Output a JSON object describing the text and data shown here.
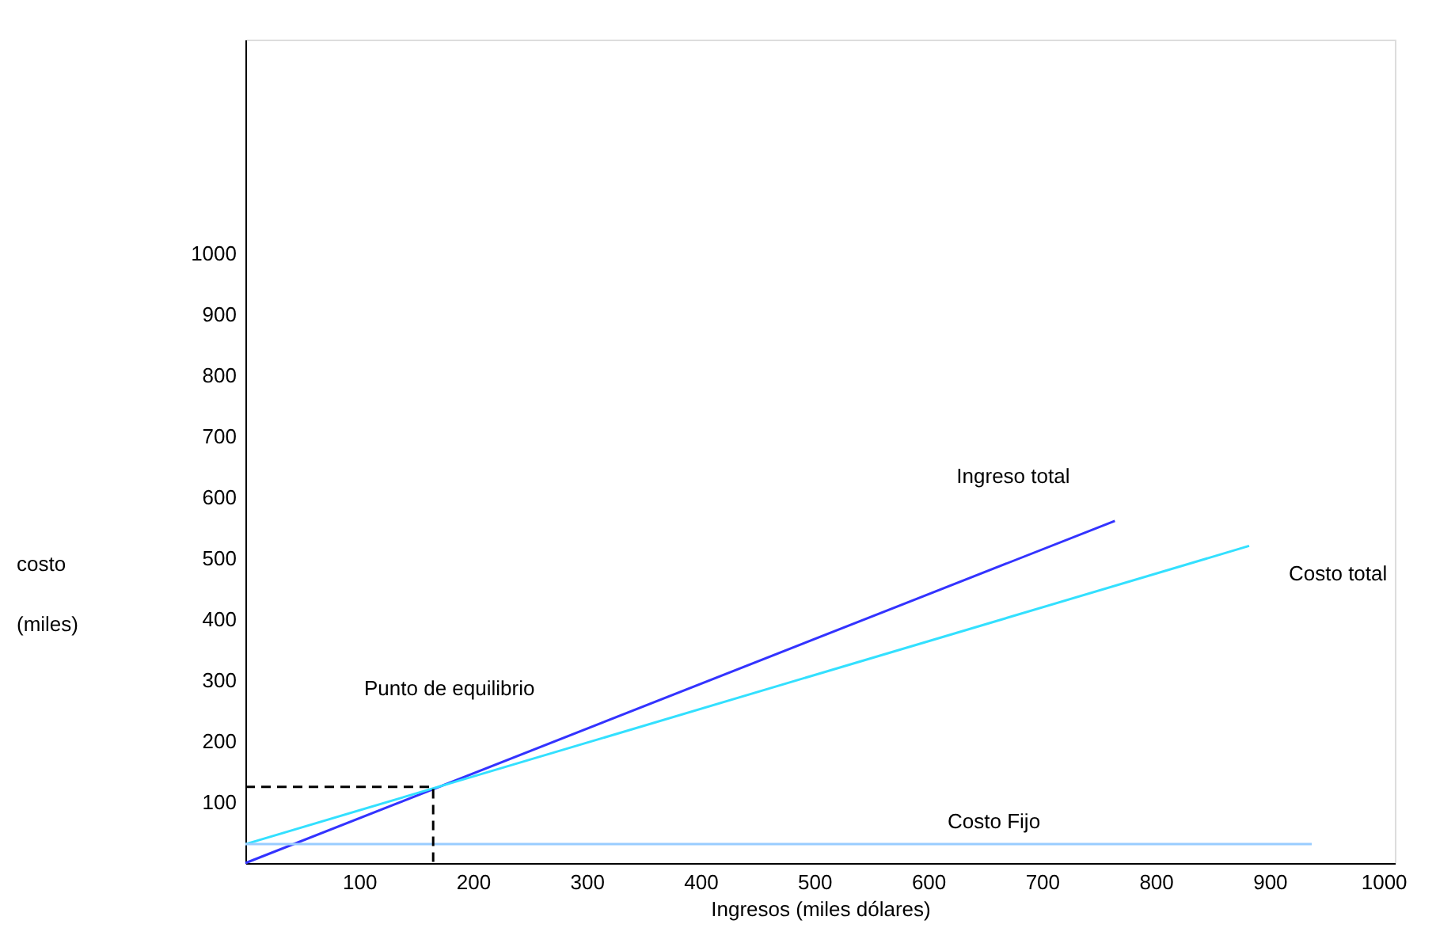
{
  "chart_data": {
    "type": "line",
    "xlabel": "Ingresos    (miles dólares)",
    "ylabel": "costo\n(miles)",
    "xlim": [
      0,
      1010
    ],
    "ylim": [
      0,
      1350
    ],
    "xticks": [
      100,
      200,
      300,
      400,
      500,
      600,
      700,
      800,
      900,
      {
        "value": 1000,
        "label": "1000"
      }
    ],
    "yticks": [
      100,
      200,
      300,
      400,
      500,
      600,
      700,
      800,
      900,
      1000
    ],
    "grid": false,
    "marker": "none",
    "series": [
      {
        "name": "Ingreso total",
        "color": "#3333ff",
        "x": [
          0,
          764
        ],
        "values": [
          0,
          561
        ],
        "line_style": "solid"
      },
      {
        "name": "Costo total",
        "color": "#33e0ff",
        "x": [
          0,
          882
        ],
        "values": [
          31,
          520
        ],
        "line_style": "solid"
      },
      {
        "name": "Costo Fijo",
        "color": "#99ccff",
        "x": [
          0,
          937
        ],
        "values": [
          31,
          31
        ],
        "line_style": "solid"
      },
      {
        "color": "#000000",
        "x": [
          0,
          165,
          165
        ],
        "values": [
          125,
          125,
          0
        ],
        "line_style": "dashed"
      }
    ],
    "annotations": [
      "Punto de equilibrio"
    ]
  }
}
